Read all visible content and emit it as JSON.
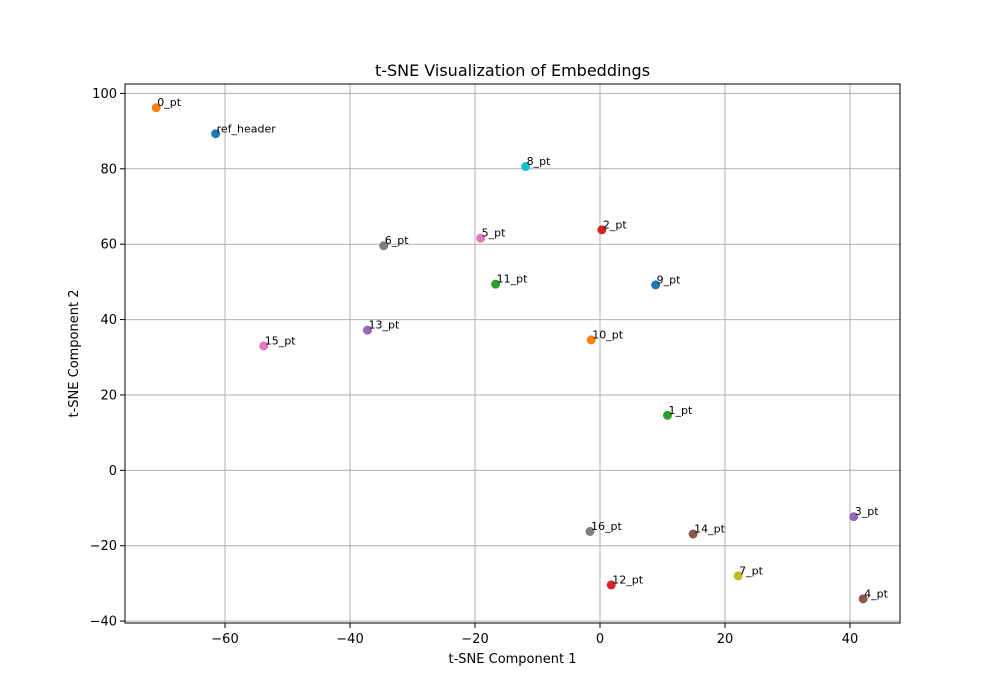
{
  "chart_data": {
    "type": "scatter",
    "title": "t-SNE Visualization of Embeddings",
    "xlabel": "t-SNE Component 1",
    "ylabel": "t-SNE Component 2",
    "xlim": [
      -76,
      48
    ],
    "ylim": [
      -40.5,
      102.5
    ],
    "xticks": [
      -60,
      -40,
      -20,
      0,
      20,
      40
    ],
    "yticks": [
      -40,
      -20,
      0,
      20,
      40,
      60,
      80,
      100
    ],
    "grid": true,
    "points": [
      {
        "label": "ref_header",
        "x": -61.5,
        "y": 89.3,
        "color": "#1f77b4"
      },
      {
        "label": "0_pt",
        "x": -71.0,
        "y": 96.2,
        "color": "#ff7f0e"
      },
      {
        "label": "1_pt",
        "x": 10.8,
        "y": 14.6,
        "color": "#2ca02c"
      },
      {
        "label": "2_pt",
        "x": 0.3,
        "y": 63.8,
        "color": "#d62728"
      },
      {
        "label": "3_pt",
        "x": 40.6,
        "y": -12.3,
        "color": "#9467bd"
      },
      {
        "label": "4_pt",
        "x": 42.1,
        "y": -34.1,
        "color": "#8c564b"
      },
      {
        "label": "5_pt",
        "x": -19.1,
        "y": 61.6,
        "color": "#e377c2"
      },
      {
        "label": "6_pt",
        "x": -34.6,
        "y": 59.6,
        "color": "#7f7f7f"
      },
      {
        "label": "7_pt",
        "x": 22.1,
        "y": -28.0,
        "color": "#bcbd22"
      },
      {
        "label": "8_pt",
        "x": -11.9,
        "y": 80.6,
        "color": "#17becf"
      },
      {
        "label": "9_pt",
        "x": 8.9,
        "y": 49.2,
        "color": "#1f77b4"
      },
      {
        "label": "10_pt",
        "x": -1.4,
        "y": 34.6,
        "color": "#ff7f0e"
      },
      {
        "label": "11_pt",
        "x": -16.7,
        "y": 49.4,
        "color": "#2ca02c"
      },
      {
        "label": "12_pt",
        "x": 1.8,
        "y": -30.4,
        "color": "#d62728"
      },
      {
        "label": "13_pt",
        "x": -37.2,
        "y": 37.2,
        "color": "#9467bd"
      },
      {
        "label": "14_pt",
        "x": 14.9,
        "y": -16.9,
        "color": "#8c564b"
      },
      {
        "label": "15_pt",
        "x": -53.8,
        "y": 33.0,
        "color": "#e377c2"
      },
      {
        "label": "16_pt",
        "x": -1.6,
        "y": -16.2,
        "color": "#7f7f7f"
      }
    ]
  }
}
